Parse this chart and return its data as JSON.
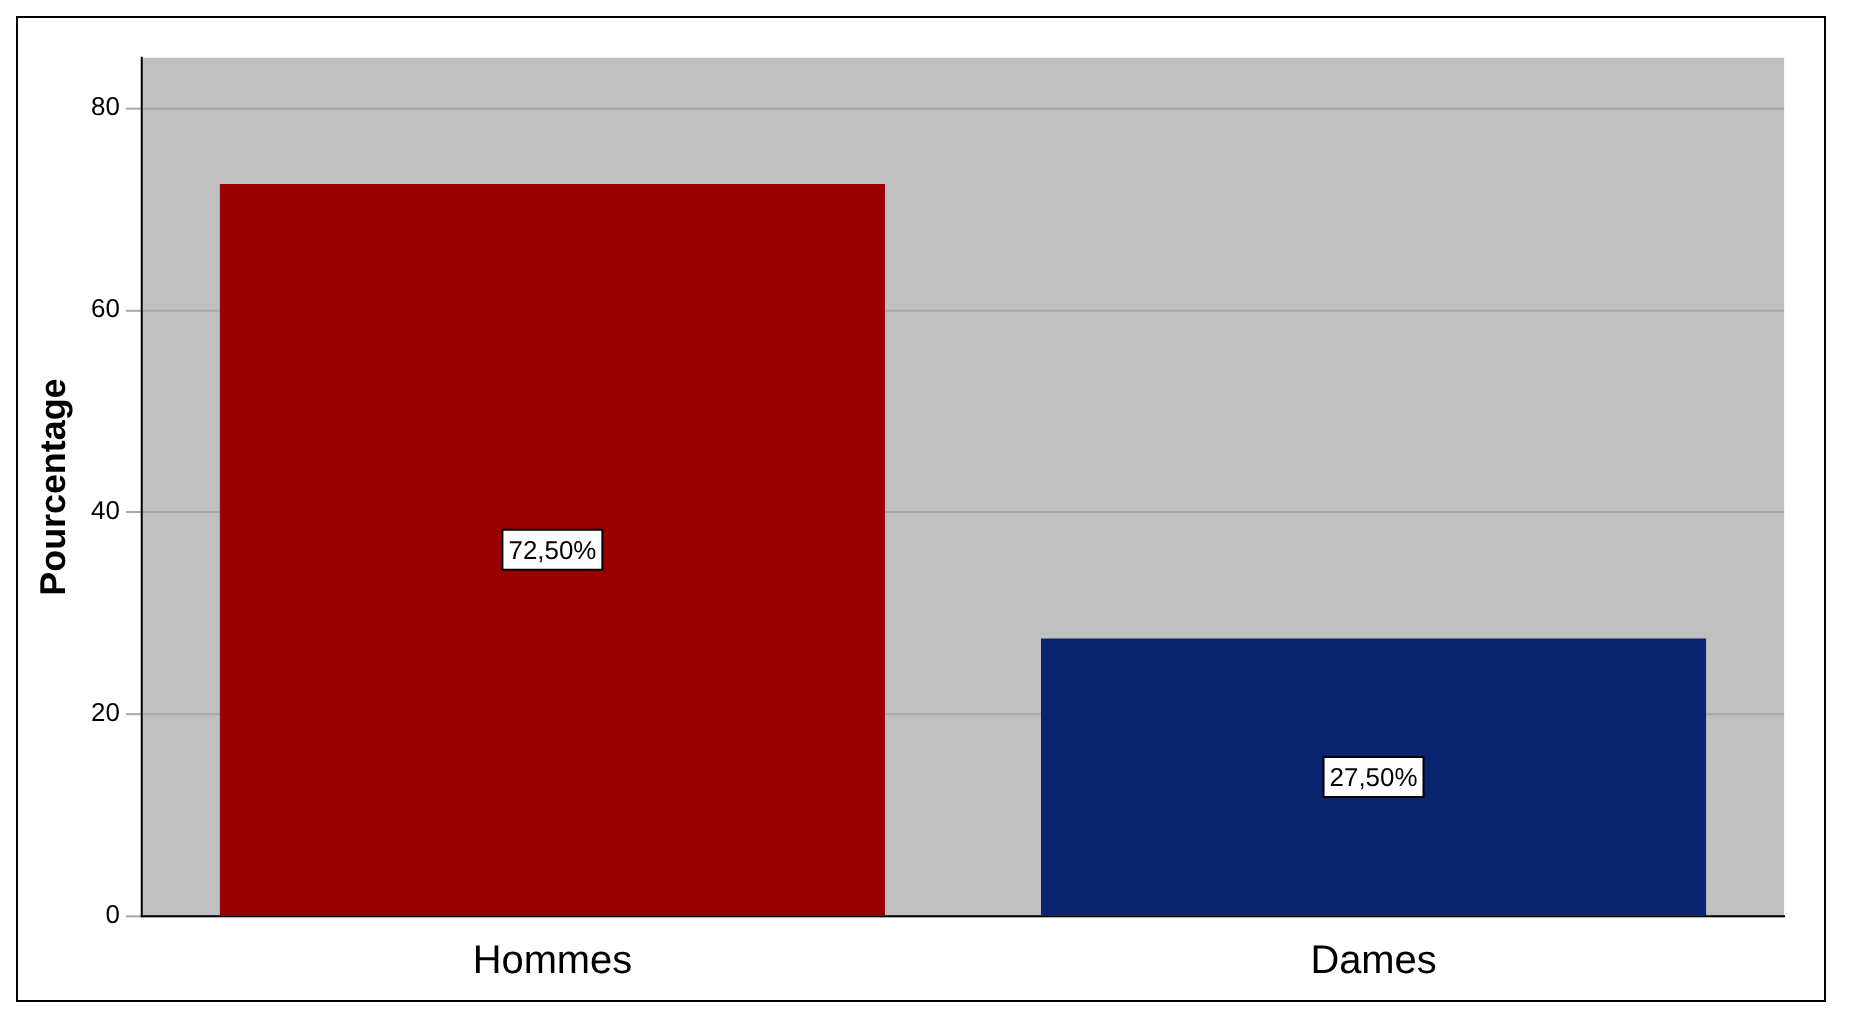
{
  "chart_data": {
    "type": "bar",
    "ylabel": "Pourcentage",
    "categories": [
      "Hommes",
      "Dames"
    ],
    "values": [
      72.5,
      27.5
    ],
    "colors": [
      "#990000",
      "#0a2570"
    ],
    "value_labels": [
      "72,50%",
      "27,50%"
    ],
    "ylim": [
      0,
      85
    ],
    "yticks": [
      0,
      20,
      40,
      60,
      80
    ],
    "grid": "y",
    "legend": false
  }
}
